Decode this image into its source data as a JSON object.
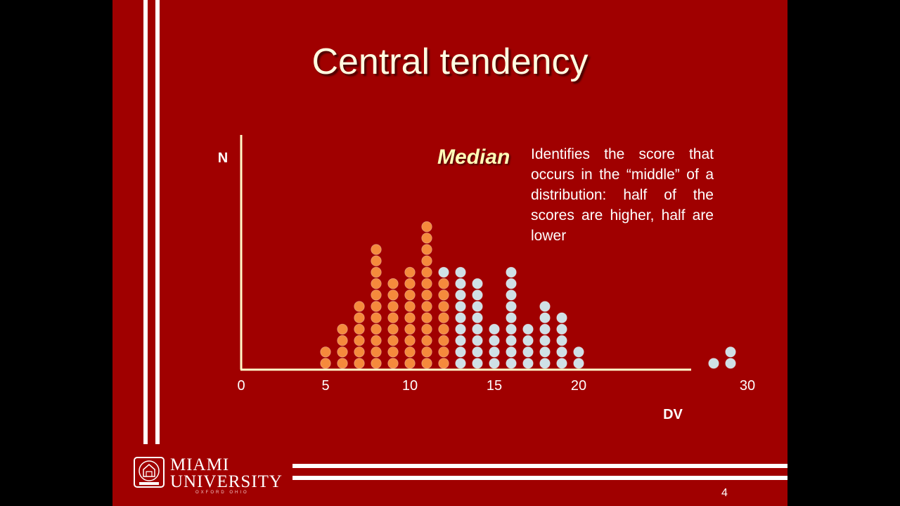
{
  "slide": {
    "title": "Central tendency",
    "page_number": "4",
    "logo": {
      "line1": "MIAMI",
      "line2": "UNIVERSITY",
      "subline": "OXFORD OHIO"
    },
    "colors": {
      "background": "#a00000",
      "lines": "#ffffff",
      "axis": "#fff8c8",
      "below_median": "#f58a3c",
      "above_median": "#cfe0e6"
    }
  },
  "median_box": {
    "label": "Median",
    "description": "Identifies the score that occurs in the “middle” of a distribution: half of the scores are higher, half are lower"
  },
  "chart_data": {
    "type": "scatter",
    "subtype": "dot-plot",
    "title": "",
    "ylabel": "N",
    "xlabel": "DV",
    "xticks": [
      0,
      5,
      10,
      15,
      20,
      30
    ],
    "series": [
      {
        "x": [
          5,
          6,
          7,
          8,
          9,
          10,
          11,
          12
        ],
        "values": [
          2,
          4,
          6,
          11,
          8,
          9,
          13,
          8
        ],
        "color": "#f58a3c"
      },
      {
        "x": [
          12,
          13,
          14,
          15,
          16,
          17,
          18,
          19,
          20,
          21,
          28,
          29
        ],
        "values": [
          1,
          9,
          8,
          4,
          9,
          4,
          6,
          5,
          2,
          0,
          1,
          2
        ],
        "color": "#cfe0e6"
      }
    ],
    "grid": false
  }
}
